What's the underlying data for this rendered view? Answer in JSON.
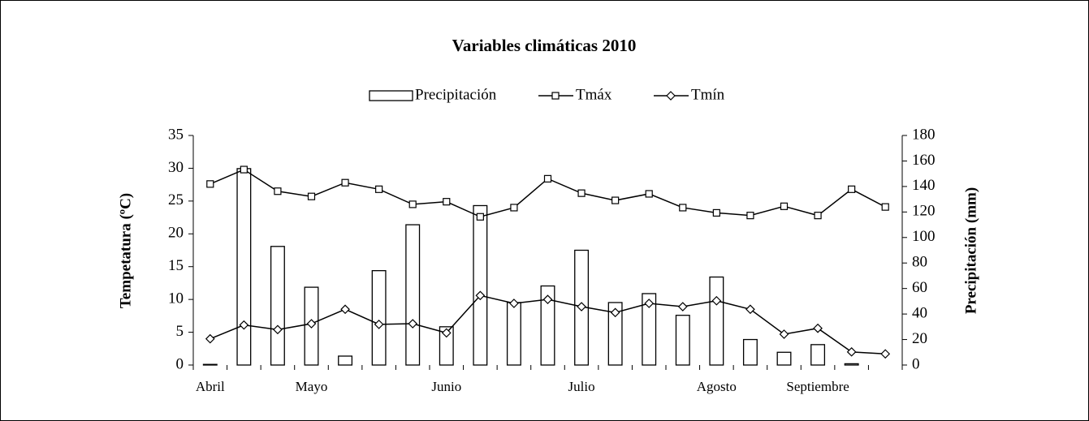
{
  "chart_data": {
    "type": "bar-line",
    "title": "Variables climáticas 2010",
    "y_label": "Tempetatura (ºC)",
    "y2_label": "Precipitación (mm)",
    "categories": [
      "Abril",
      null,
      null,
      "Mayo",
      null,
      null,
      null,
      "Junio",
      null,
      null,
      null,
      "Julio",
      null,
      null,
      null,
      "Agosto",
      null,
      null,
      "Septiembre",
      null,
      null
    ],
    "series": [
      {
        "name": "Precipitación",
        "type": "bar",
        "axis": "y2",
        "color": "#ffffff",
        "values": [
          0.5,
          154,
          93,
          61,
          7,
          74,
          110,
          30,
          125,
          49,
          62,
          90,
          49,
          56,
          39,
          69,
          20,
          10,
          16,
          1,
          0
        ]
      },
      {
        "name": "Tmáx",
        "type": "line",
        "marker": "square",
        "color": "#000000",
        "values": [
          27.6,
          29.8,
          26.5,
          25.7,
          27.8,
          26.8,
          24.5,
          24.9,
          22.6,
          24.0,
          28.4,
          26.2,
          25.1,
          26.1,
          24.0,
          23.2,
          22.8,
          24.2,
          22.8,
          26.8,
          24.1
        ]
      },
      {
        "name": "Tmín",
        "type": "line",
        "marker": "diamond",
        "color": "#000000",
        "values": [
          4.0,
          6.1,
          5.4,
          6.3,
          8.5,
          6.2,
          6.3,
          4.9,
          10.6,
          9.4,
          10.0,
          8.9,
          8.0,
          9.4,
          8.9,
          9.8,
          8.5,
          4.7,
          5.6,
          2.0,
          1.7
        ]
      }
    ],
    "ylim": [
      0,
      35
    ],
    "yticks": [
      0,
      5,
      10,
      15,
      20,
      25,
      30,
      35
    ],
    "y2lim": [
      0,
      180
    ],
    "y2ticks": [
      0,
      20,
      40,
      60,
      80,
      100,
      120,
      140,
      160,
      180
    ],
    "legend": "top"
  }
}
